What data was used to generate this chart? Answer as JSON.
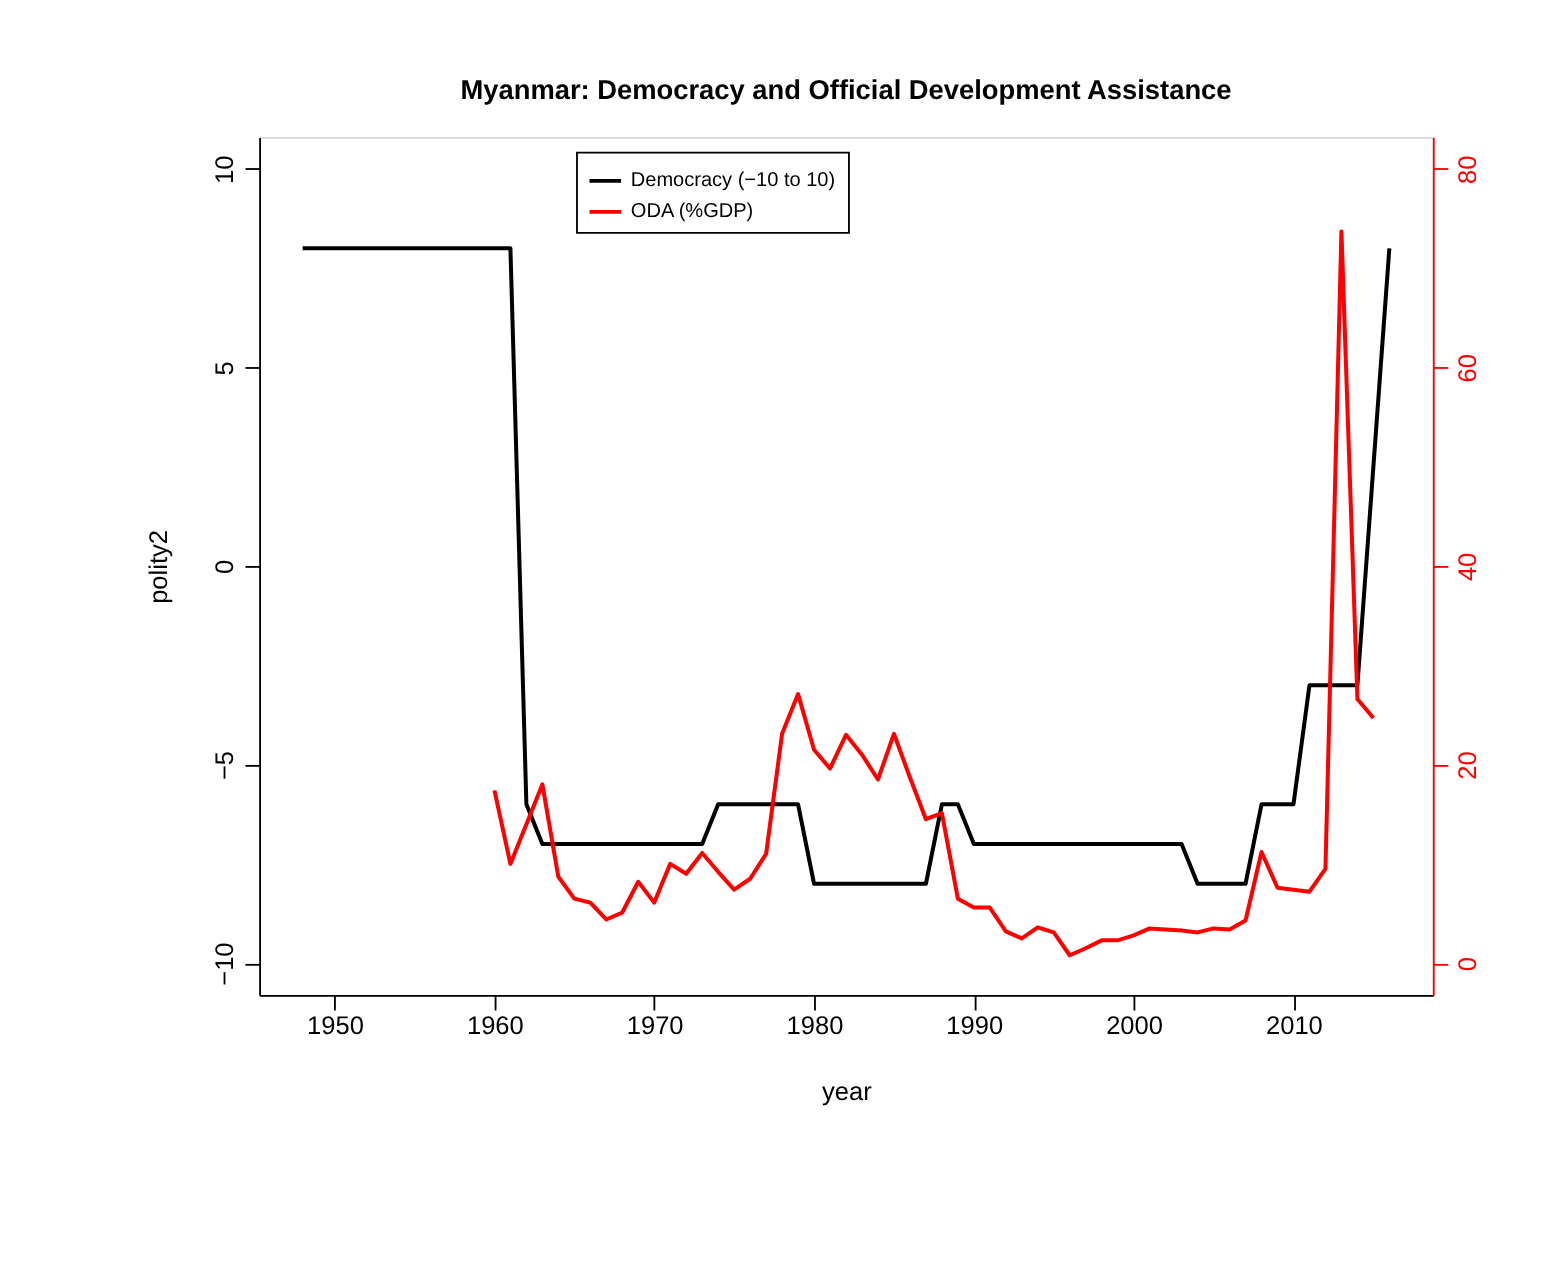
{
  "chart_data": {
    "type": "line",
    "title": "Myanmar: Democracy and Official Development Assistance",
    "xlabel": "year",
    "ylabel": "polity2",
    "xlim": [
      1945.28,
      2018.72
    ],
    "xticks": [
      1950,
      1960,
      1970,
      1980,
      1990,
      2000,
      2010
    ],
    "ylim": [
      -10.8,
      10.8
    ],
    "yticks": [
      -10,
      -5,
      0,
      5,
      10
    ],
    "y2lim": [
      -3.2,
      83.2
    ],
    "y2ticks": [
      0,
      20,
      40,
      60,
      80
    ],
    "grid": false,
    "legend": "top",
    "marker": "none",
    "line_style": "solid",
    "series": [
      {
        "name": "Democracy (−10 to 10)",
        "color": "#000000",
        "x": [
          1948,
          1949,
          1950,
          1951,
          1952,
          1953,
          1954,
          1955,
          1956,
          1957,
          1958,
          1959,
          1960,
          1961,
          1962,
          1963,
          1964,
          1965,
          1966,
          1967,
          1968,
          1969,
          1970,
          1971,
          1972,
          1973,
          1974,
          1975,
          1976,
          1977,
          1978,
          1979,
          1980,
          1981,
          1982,
          1983,
          1984,
          1985,
          1986,
          1987,
          1988,
          1989,
          1990,
          1991,
          1992,
          1993,
          1994,
          1995,
          1996,
          1997,
          1998,
          1999,
          2000,
          2001,
          2002,
          2003,
          2004,
          2005,
          2006,
          2007,
          2008,
          2009,
          2010,
          2011,
          2012,
          2013,
          2014,
          2015,
          2016
        ],
        "values": [
          8,
          8,
          8,
          8,
          8,
          8,
          8,
          8,
          8,
          8,
          8,
          8,
          8,
          8,
          -6,
          -7,
          -7,
          -7,
          -7,
          -7,
          -7,
          -7,
          -7,
          -7,
          -7,
          -7,
          -6,
          -6,
          -6,
          -6,
          -6,
          -6,
          -8,
          -8,
          -8,
          -8,
          -8,
          -8,
          -8,
          -8,
          -6,
          -6,
          -7,
          -7,
          -7,
          -7,
          -7,
          -7,
          -7,
          -7,
          -7,
          -7,
          -7,
          -7,
          -7,
          -7,
          -8,
          -8,
          -8,
          -8,
          -6,
          -6,
          -6,
          -3,
          -3,
          -3,
          -3,
          2.5,
          8
        ]
      },
      {
        "name": "ODA (%GDP)",
        "color": "#ff0000",
        "axis": "y2",
        "x": [
          1960,
          1961,
          1962,
          1963,
          1964,
          1965,
          1966,
          1967,
          1968,
          1969,
          1970,
          1971,
          1972,
          1973,
          1974,
          1975,
          1976,
          1977,
          1978,
          1979,
          1980,
          1981,
          1982,
          1983,
          1984,
          1985,
          1986,
          1987,
          1988,
          1989,
          1990,
          1991,
          1992,
          1993,
          1994,
          1995,
          1996,
          1997,
          1998,
          1999,
          2000,
          2001,
          2002,
          2003,
          2004,
          2005,
          2006,
          2007,
          2008,
          2009,
          2010,
          2011,
          2012,
          2013,
          2014,
          2015
        ],
        "values": [
          17.4,
          10.0,
          14.0,
          18.0,
          8.7,
          6.5,
          6.1,
          4.4,
          5.1,
          8.2,
          6.1,
          10.0,
          9.0,
          11.1,
          9.2,
          7.4,
          8.5,
          11.0,
          23.1,
          27.1,
          21.5,
          19.6,
          23.0,
          21.0,
          18.5,
          23.1,
          18.7,
          14.5,
          15.1,
          6.5,
          5.6,
          5.6,
          3.2,
          2.5,
          3.6,
          3.1,
          0.8,
          1.5,
          2.3,
          2.3,
          2.8,
          3.5,
          3.4,
          3.3,
          3.1,
          3.5,
          3.4,
          4.3,
          11.2,
          7.6,
          7.4,
          7.2,
          9.5,
          73.7,
          26.6,
          24.7
        ]
      }
    ]
  }
}
